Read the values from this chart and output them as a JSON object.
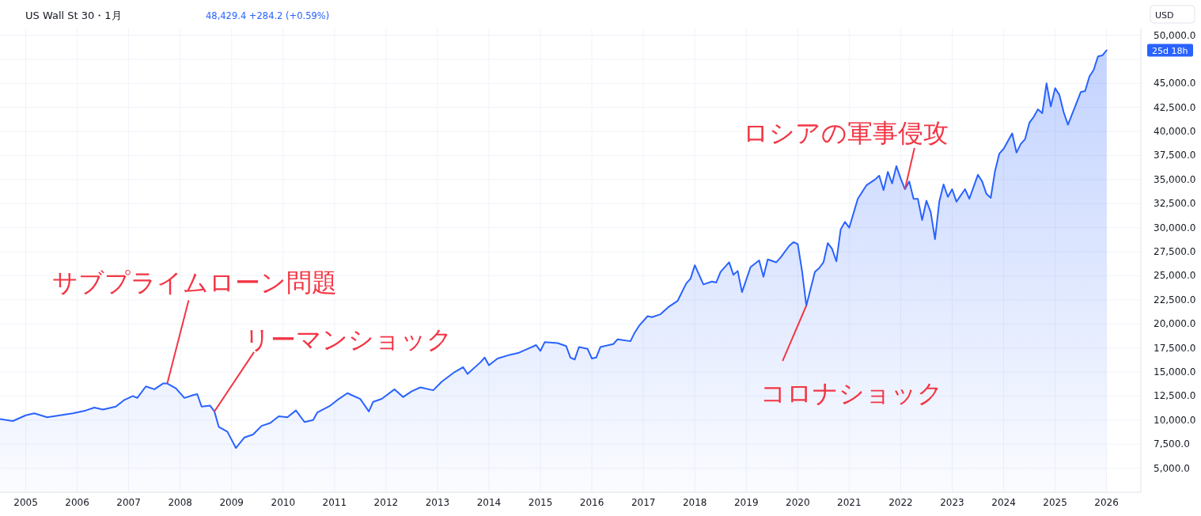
{
  "chart_data": {
    "type": "area",
    "title": "US Wall St 30・1月",
    "subtitle": "48,429.4 +284.2 (+0.59%)",
    "annotations": [
      "USD",
      "25d 18h",
      {
        "text": "サブプライムローン問題",
        "x": "2007-10",
        "y": 13800
      },
      {
        "text": "リーマンショック",
        "x": "2008-09",
        "y": 10900
      },
      {
        "text": "コロナショック",
        "x": "2020-03",
        "y": 21900
      },
      {
        "text": "ロシアの軍事侵攻",
        "x": "2022-02",
        "y": 34000
      }
    ],
    "x": [
      "2004-07",
      "2004-10",
      "2005-01",
      "2005-03",
      "2005-06",
      "2005-09",
      "2005-12",
      "2006-03",
      "2006-05",
      "2006-07",
      "2006-10",
      "2006-12",
      "2007-02",
      "2007-03",
      "2007-05",
      "2007-07",
      "2007-09",
      "2007-10",
      "2007-12",
      "2008-02",
      "2008-04",
      "2008-05",
      "2008-06",
      "2008-08",
      "2008-09",
      "2008-10",
      "2008-12",
      "2009-02",
      "2009-04",
      "2009-06",
      "2009-08",
      "2009-10",
      "2009-12",
      "2010-02",
      "2010-04",
      "2010-06",
      "2010-08",
      "2010-09",
      "2010-12",
      "2011-02",
      "2011-04",
      "2011-07",
      "2011-09",
      "2011-10",
      "2011-12",
      "2012-03",
      "2012-05",
      "2012-07",
      "2012-09",
      "2012-12",
      "2013-02",
      "2013-05",
      "2013-07",
      "2013-08",
      "2013-11",
      "2013-12",
      "2014-01",
      "2014-03",
      "2014-06",
      "2014-08",
      "2014-10",
      "2014-12",
      "2015-01",
      "2015-02",
      "2015-05",
      "2015-07",
      "2015-08",
      "2015-09",
      "2015-10",
      "2015-12",
      "2016-01",
      "2016-02",
      "2016-03",
      "2016-06",
      "2016-07",
      "2016-10",
      "2016-11",
      "2016-12",
      "2017-02",
      "2017-03",
      "2017-05",
      "2017-07",
      "2017-09",
      "2017-11",
      "2017-12",
      "2018-01",
      "2018-03",
      "2018-05",
      "2018-06",
      "2018-07",
      "2018-09",
      "2018-10",
      "2018-11",
      "2018-12",
      "2019-02",
      "2019-04",
      "2019-05",
      "2019-06",
      "2019-08",
      "2019-09",
      "2019-11",
      "2019-12",
      "2020-01",
      "2020-02",
      "2020-03",
      "2020-05",
      "2020-06",
      "2020-07",
      "2020-08",
      "2020-09",
      "2020-10",
      "2020-11",
      "2020-12",
      "2021-01",
      "2021-03",
      "2021-05",
      "2021-07",
      "2021-08",
      "2021-09",
      "2021-10",
      "2021-11",
      "2021-12",
      "2022-01",
      "2022-02",
      "2022-03",
      "2022-04",
      "2022-05",
      "2022-06",
      "2022-07",
      "2022-08",
      "2022-09",
      "2022-10",
      "2022-11",
      "2022-12",
      "2023-01",
      "2023-02",
      "2023-04",
      "2023-05",
      "2023-07",
      "2023-08",
      "2023-09",
      "2023-10",
      "2023-11",
      "2023-12",
      "2024-01",
      "2024-03",
      "2024-04",
      "2024-05",
      "2024-06",
      "2024-07",
      "2024-08",
      "2024-09",
      "2024-10",
      "2024-11",
      "2024-12",
      "2025-01",
      "2025-02",
      "2025-03",
      "2025-04",
      "2025-07",
      "2025-08",
      "2025-09",
      "2025-10",
      "2025-11",
      "2025-12",
      "2026-01"
    ],
    "series": [
      {
        "color": "#2962ff",
        "values": [
          10100,
          9900,
          10500,
          10700,
          10300,
          10500,
          10700,
          11000,
          11300,
          11100,
          11400,
          12100,
          12500,
          12300,
          13500,
          13200,
          13800,
          13800,
          13300,
          12300,
          12600,
          12700,
          11400,
          11500,
          10900,
          9300,
          8800,
          7100,
          8200,
          8500,
          9400,
          9700,
          10400,
          10300,
          11000,
          9800,
          10000,
          10800,
          11500,
          12200,
          12800,
          12200,
          10900,
          11900,
          12200,
          13200,
          12400,
          13000,
          13400,
          13100,
          14000,
          15000,
          15500,
          14800,
          16000,
          16500,
          15700,
          16400,
          16800,
          17000,
          17400,
          17800,
          17200,
          18100,
          18000,
          17700,
          16500,
          16300,
          17600,
          17400,
          16400,
          16500,
          17600,
          17900,
          18400,
          18200,
          19100,
          19800,
          20800,
          20700,
          21000,
          21800,
          22400,
          24200,
          24700,
          26100,
          24100,
          24400,
          24300,
          25400,
          26400,
          25100,
          25500,
          23300,
          25900,
          26600,
          24900,
          26700,
          26400,
          26900,
          28100,
          28500,
          28300,
          25500,
          21900,
          25400,
          25800,
          26400,
          28400,
          27800,
          26500,
          29800,
          30600,
          30000,
          33000,
          34400,
          35000,
          35400,
          33900,
          35800,
          34600,
          36400,
          35100,
          34000,
          34800,
          33000,
          33000,
          30800,
          32800,
          31600,
          28800,
          32700,
          34500,
          33200,
          34000,
          32700,
          34000,
          33000,
          35500,
          34800,
          33500,
          33100,
          35900,
          37700,
          38200,
          39800,
          37800,
          38700,
          39200,
          40900,
          41500,
          42300,
          41900,
          45000,
          42600,
          44500,
          43800,
          42000,
          40700,
          44100,
          44200,
          45700,
          46400,
          47800,
          47900,
          48429.4
        ]
      }
    ],
    "xlim": [
      "2004-07",
      "2026-09"
    ],
    "xticks": [
      "2005",
      "2006",
      "2007",
      "2008",
      "2009",
      "2010",
      "2011",
      "2012",
      "2013",
      "2014",
      "2015",
      "2016",
      "2017",
      "2018",
      "2019",
      "2020",
      "2021",
      "2022",
      "2023",
      "2024",
      "2025",
      "2026"
    ],
    "ylim": [
      2500,
      50700
    ],
    "yticks": [
      {
        "value": 5000,
        "label": "5,000.0"
      },
      {
        "value": 7500,
        "label": "7,500.0"
      },
      {
        "value": 10000,
        "label": "10,000.0"
      },
      {
        "value": 12500,
        "label": "12,500.0"
      },
      {
        "value": 15000,
        "label": "15,000.0"
      },
      {
        "value": 17500,
        "label": "17,500.0"
      },
      {
        "value": 20000,
        "label": "20,000.0"
      },
      {
        "value": 22500,
        "label": "22,500.0"
      },
      {
        "value": 25000,
        "label": "25,000.0"
      },
      {
        "value": 27500,
        "label": "27,500.0"
      },
      {
        "value": 30000,
        "label": "30,000.0"
      },
      {
        "value": 32500,
        "label": "32,500.0"
      },
      {
        "value": 35000,
        "label": "35,000.0"
      },
      {
        "value": 37500,
        "label": "37,500.0"
      },
      {
        "value": 40000,
        "label": "40,000.0"
      },
      {
        "value": 42500,
        "label": "42,500.0"
      },
      {
        "value": 45000,
        "label": "45,000.0"
      },
      {
        "value": 47500,
        "label": null
      },
      {
        "value": 50000,
        "label": "50,000.0"
      }
    ],
    "grid": true
  }
}
